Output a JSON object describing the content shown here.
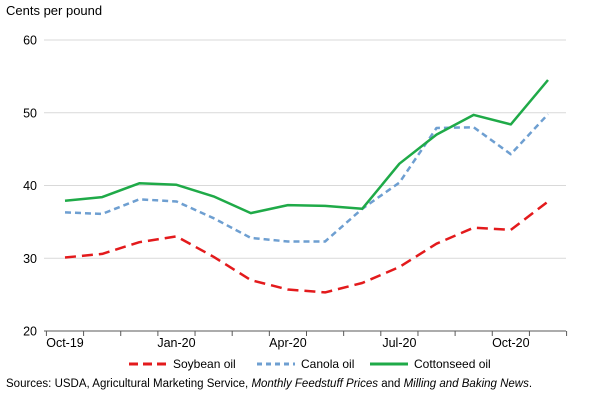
{
  "chart_data": {
    "type": "line",
    "ylabel": "Cents per pound",
    "ylim": [
      20,
      60
    ],
    "yticks": [
      20,
      30,
      40,
      50,
      60
    ],
    "xtick_labels": [
      "Oct-19",
      "Jan-20",
      "Apr-20",
      "Jul-20",
      "Oct-20"
    ],
    "x": [
      "Oct-19",
      "Nov-19",
      "Dec-19",
      "Jan-20",
      "Feb-20",
      "Mar-20",
      "Apr-20",
      "May-20",
      "Jun-20",
      "Jul-20",
      "Aug-20",
      "Sep-20",
      "Oct-20",
      "Nov-20"
    ],
    "grid": "horizontal",
    "legend_position": "bottom",
    "series": [
      {
        "name": "Soybean oil",
        "style": "dashed",
        "color": "#e31a1c",
        "values": [
          30.1,
          30.6,
          32.2,
          33.0,
          30.2,
          27.0,
          25.7,
          25.3,
          26.6,
          28.8,
          32.0,
          34.2,
          33.9,
          37.8
        ]
      },
      {
        "name": "Canola oil",
        "style": "dashed",
        "color": "#6e9fd1",
        "values": [
          36.3,
          36.1,
          38.1,
          37.8,
          35.5,
          32.8,
          32.3,
          32.3,
          36.8,
          40.4,
          47.9,
          48.0,
          44.3,
          49.8
        ]
      },
      {
        "name": "Cottonseed oil",
        "style": "solid",
        "color": "#1faa48",
        "values": [
          37.9,
          38.4,
          40.3,
          40.1,
          38.5,
          36.2,
          37.3,
          37.2,
          36.8,
          43.0,
          47.0,
          49.7,
          48.4,
          54.5
        ]
      }
    ]
  },
  "source": {
    "prefix": "Sources: USDA, Agricultural Marketing Service, ",
    "pub1": "Monthly Feedstuff Prices",
    "mid": " and ",
    "pub2": "Milling and Baking News",
    "suffix": "."
  }
}
